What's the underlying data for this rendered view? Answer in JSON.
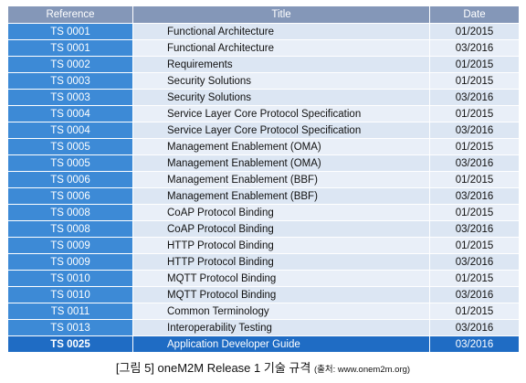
{
  "table": {
    "header": [
      "Reference",
      "Title",
      "Date"
    ],
    "rows": [
      [
        "TS 0001",
        "Functional Architecture",
        "01/2015"
      ],
      [
        "TS 0001",
        "Functional Architecture",
        "03/2016"
      ],
      [
        "TS 0002",
        "Requirements",
        "01/2015"
      ],
      [
        "TS 0003",
        "Security Solutions",
        "01/2015"
      ],
      [
        "TS 0003",
        "Security Solutions",
        "03/2016"
      ],
      [
        "TS 0004",
        "Service Layer Core Protocol Specification",
        "01/2015"
      ],
      [
        "TS 0004",
        "Service Layer Core Protocol Specification",
        "03/2016"
      ],
      [
        "TS 0005",
        "Management Enablement (OMA)",
        "01/2015"
      ],
      [
        "TS 0005",
        "Management Enablement (OMA)",
        "03/2016"
      ],
      [
        "TS 0006",
        "Management Enablement (BBF)",
        "01/2015"
      ],
      [
        "TS 0006",
        "Management Enablement (BBF)",
        "03/2016"
      ],
      [
        "TS 0008",
        "CoAP Protocol Binding",
        "01/2015"
      ],
      [
        "TS 0008",
        "CoAP Protocol Binding",
        "03/2016"
      ],
      [
        "TS 0009",
        "HTTP Protocol Binding",
        "01/2015"
      ],
      [
        "TS 0009",
        "HTTP Protocol Binding",
        "03/2016"
      ],
      [
        "TS 0010",
        "MQTT Protocol Binding",
        "01/2015"
      ],
      [
        "TS 0010",
        "MQTT Protocol Binding",
        "03/2016"
      ],
      [
        "TS 0011",
        "Common Terminology",
        "01/2015"
      ],
      [
        "TS 0013",
        "Interoperability Testing",
        "03/2016"
      ],
      [
        "TS 0025",
        "Application Developer Guide",
        "03/2016"
      ]
    ]
  },
  "caption": {
    "title": "[그림 5] oneM2M Release 1 기술 규격",
    "source": "(출처: www.onem2m.org)"
  }
}
